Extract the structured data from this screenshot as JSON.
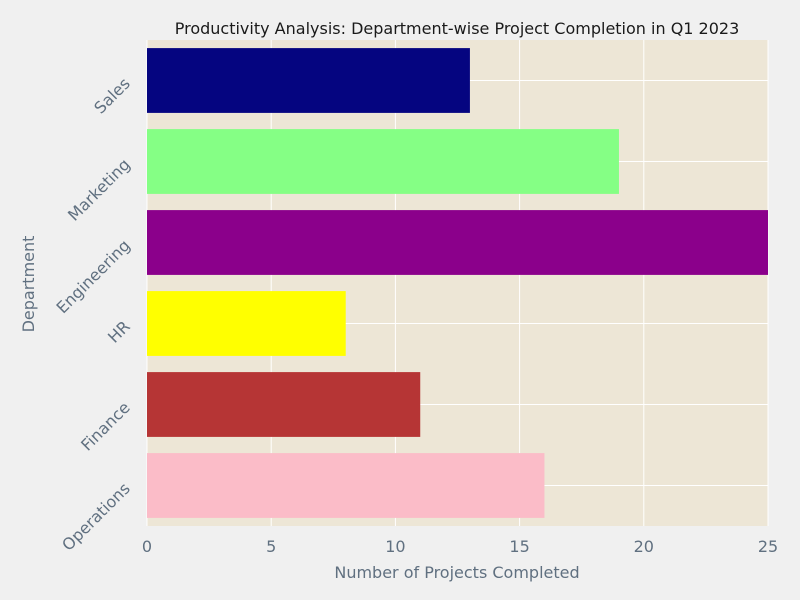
{
  "chart_data": {
    "type": "bar",
    "orientation": "horizontal",
    "title": "Productivity Analysis: Department-wise Project Completion in Q1 2023",
    "xlabel": "Number of Projects Completed",
    "ylabel": "Department",
    "xlim": [
      0,
      25
    ],
    "x_ticks": [
      0,
      5,
      10,
      15,
      20,
      25
    ],
    "grid": true,
    "categories": [
      "Sales",
      "Marketing",
      "Engineering",
      "HR",
      "Finance",
      "Operations"
    ],
    "values": [
      13,
      19,
      25,
      8,
      11,
      16
    ],
    "colors": [
      "#050580",
      "#85ff85",
      "#8b008b",
      "#ffff00",
      "#b63535",
      "#fbbcc8"
    ]
  },
  "style": {
    "plot_background": "#ede6d6",
    "page_background": "#f0f0f0",
    "grid_color": "#ffffff",
    "label_color": "#607080",
    "title_color": "#1a1a1a"
  }
}
